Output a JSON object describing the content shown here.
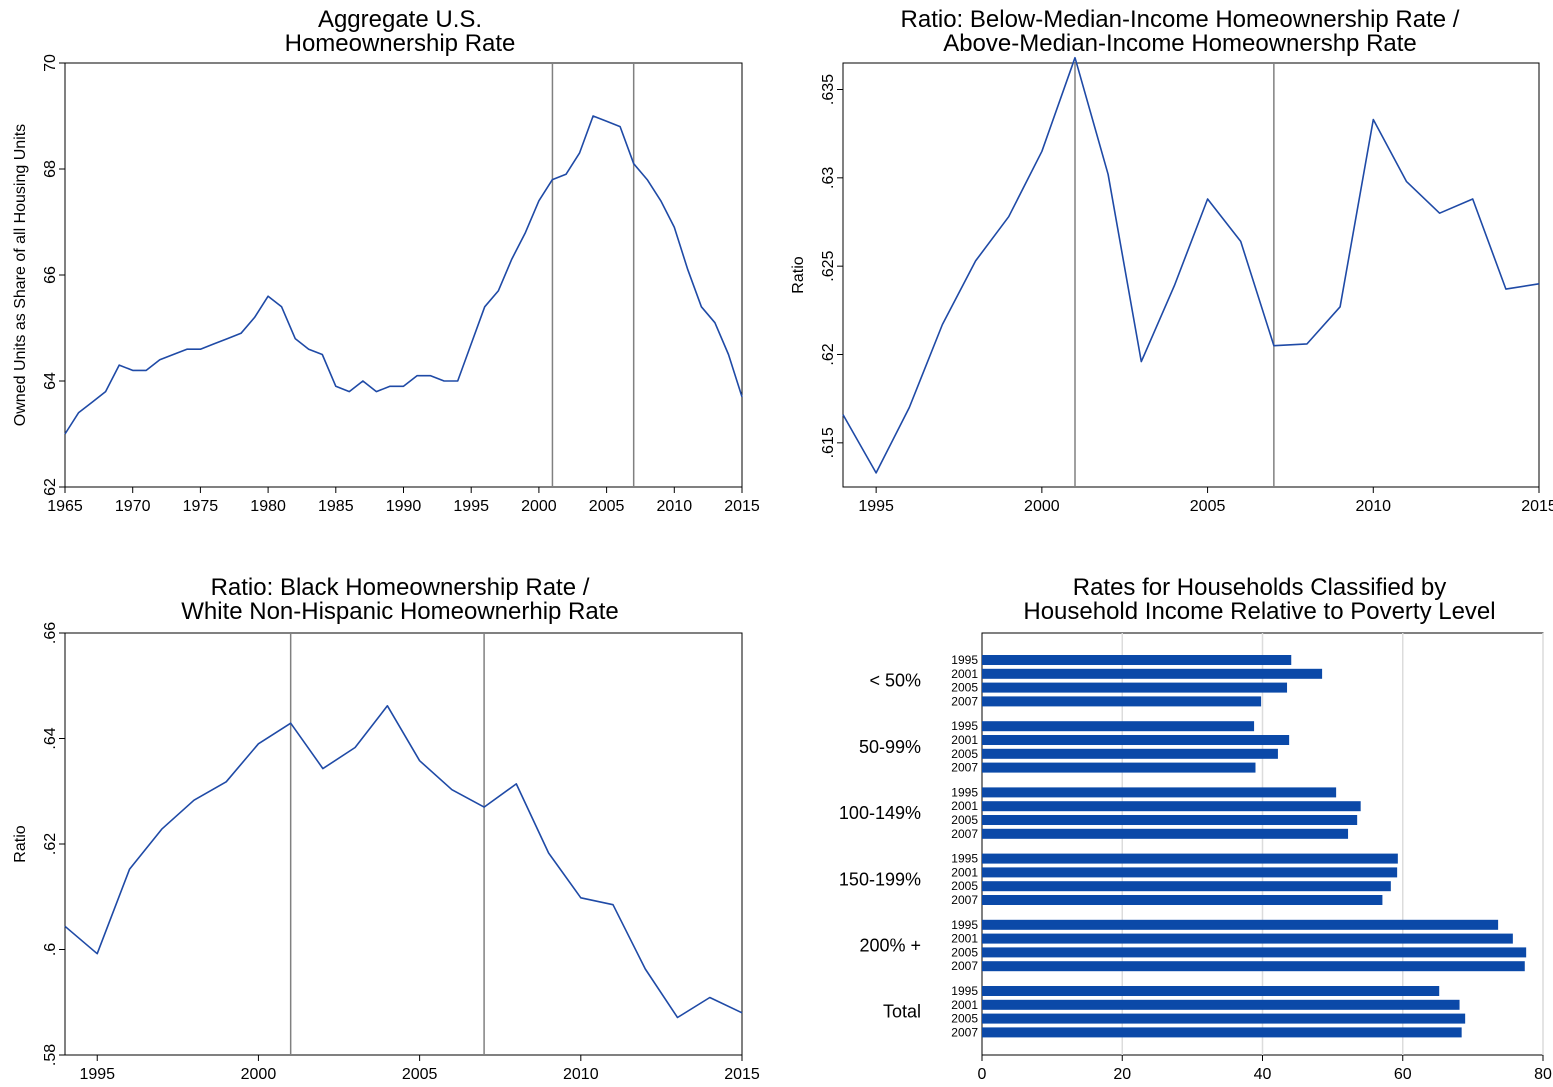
{
  "chart_data": [
    {
      "type": "line",
      "title": [
        "Aggregate U.S.",
        "Homeownership Rate"
      ],
      "xlabel": "",
      "ylabel": "Owned Units as Share of all Housing Units",
      "xlim": [
        1965,
        2015
      ],
      "ylim": [
        62,
        70
      ],
      "xticks": [
        "1965",
        "1970",
        "1975",
        "1980",
        "1985",
        "1990",
        "1995",
        "2000",
        "2005",
        "2010",
        "2015"
      ],
      "yticks": [
        "62",
        "64",
        "66",
        "68",
        "70"
      ],
      "vlines": [
        2001,
        2007
      ],
      "series": [
        {
          "x": [
            1965,
            1966,
            1967,
            1968,
            1969,
            1970,
            1971,
            1972,
            1973,
            1974,
            1975,
            1976,
            1977,
            1978,
            1979,
            1980,
            1981,
            1982,
            1983,
            1984,
            1985,
            1986,
            1987,
            1988,
            1989,
            1990,
            1991,
            1992,
            1993,
            1994,
            1995,
            1996,
            1997,
            1998,
            1999,
            2000,
            2001,
            2002,
            2003,
            2004,
            2005,
            2006,
            2007,
            2008,
            2009,
            2010,
            2011,
            2012,
            2013,
            2014,
            2015
          ],
          "values": [
            63.0,
            63.4,
            63.6,
            63.8,
            64.3,
            64.2,
            64.2,
            64.4,
            64.5,
            64.6,
            64.6,
            64.7,
            64.8,
            64.9,
            65.2,
            65.6,
            65.4,
            64.8,
            64.6,
            64.5,
            63.9,
            63.8,
            64.0,
            63.8,
            63.9,
            63.9,
            64.1,
            64.1,
            64.0,
            64.0,
            64.7,
            65.4,
            65.7,
            66.3,
            66.8,
            67.4,
            67.8,
            67.9,
            68.3,
            69.0,
            68.9,
            68.8,
            68.1,
            67.8,
            67.4,
            66.9,
            66.1,
            65.4,
            65.1,
            64.5,
            63.7
          ]
        }
      ]
    },
    {
      "type": "line",
      "title": [
        "Ratio: Below-Median-Income Homeownership Rate /",
        "Above-Median-Income Homeownershp Rate"
      ],
      "xlabel": "",
      "ylabel": "Ratio",
      "xlim": [
        1994,
        2015
      ],
      "ylim": [
        0.6125,
        0.6365
      ],
      "xticks": [
        "1995",
        "2000",
        "2005",
        "2010",
        "2015"
      ],
      "yticks": [
        ".615",
        ".62",
        ".625",
        ".63",
        ".635"
      ],
      "vlines": [
        2001,
        2007
      ],
      "series": [
        {
          "x": [
            1994,
            1995,
            1996,
            1997,
            1998,
            1999,
            2000,
            2001,
            2002,
            2003,
            2004,
            2005,
            2006,
            2007,
            2008,
            2009,
            2010,
            2011,
            2012,
            2013,
            2014,
            2015
          ],
          "values": [
            0.6166,
            0.6133,
            0.617,
            0.6217,
            0.6253,
            0.6278,
            0.6315,
            0.6368,
            0.6302,
            0.6196,
            0.6239,
            0.6288,
            0.6264,
            0.6205,
            0.6206,
            0.6227,
            0.6333,
            0.6298,
            0.628,
            0.6288,
            0.6237,
            0.624
          ]
        }
      ]
    },
    {
      "type": "line",
      "title": [
        "Ratio: Black Homeownership Rate /",
        "White Non-Hispanic Homeownerhip Rate"
      ],
      "xlabel": "",
      "ylabel": "Ratio",
      "xlim": [
        1994,
        2015
      ],
      "ylim": [
        0.58,
        0.66
      ],
      "xticks": [
        "1995",
        "2000",
        "2005",
        "2010",
        "2015"
      ],
      "yticks": [
        ".58",
        ".6",
        ".62",
        ".64",
        ".66"
      ],
      "vlines": [
        2001,
        2007
      ],
      "series": [
        {
          "x": [
            1994,
            1995,
            1996,
            1997,
            1998,
            1999,
            2000,
            2001,
            2002,
            2003,
            2004,
            2005,
            2006,
            2007,
            2008,
            2009,
            2010,
            2011,
            2012,
            2013,
            2014,
            2015
          ],
          "values": [
            0.6044,
            0.5992,
            0.6152,
            0.6228,
            0.6283,
            0.6318,
            0.639,
            0.6429,
            0.6343,
            0.6383,
            0.6462,
            0.6358,
            0.6303,
            0.627,
            0.6314,
            0.6183,
            0.6098,
            0.6085,
            0.5963,
            0.5871,
            0.5909,
            0.588
          ]
        }
      ]
    },
    {
      "type": "bar",
      "orientation": "horizontal",
      "title": [
        "Rates for Households Classified by",
        "Household Income Relative to Poverty Level"
      ],
      "xlabel": "",
      "ylabel": "",
      "xlim": [
        0,
        80
      ],
      "xticks": [
        "0",
        "20",
        "40",
        "60",
        "80"
      ],
      "color": "#0b49a8",
      "groups": [
        {
          "label": "< 50%",
          "bars": [
            {
              "year": "1995",
              "value": 44.1
            },
            {
              "year": "2001",
              "value": 48.5
            },
            {
              "year": "2005",
              "value": 43.5
            },
            {
              "year": "2007",
              "value": 39.8
            }
          ]
        },
        {
          "label": "50-99%",
          "bars": [
            {
              "year": "1995",
              "value": 38.8
            },
            {
              "year": "2001",
              "value": 43.8
            },
            {
              "year": "2005",
              "value": 42.2
            },
            {
              "year": "2007",
              "value": 39.0
            }
          ]
        },
        {
          "label": "100-149%",
          "bars": [
            {
              "year": "1995",
              "value": 50.5
            },
            {
              "year": "2001",
              "value": 54.0
            },
            {
              "year": "2005",
              "value": 53.5
            },
            {
              "year": "2007",
              "value": 52.2
            }
          ]
        },
        {
          "label": "150-199%",
          "bars": [
            {
              "year": "1995",
              "value": 59.3
            },
            {
              "year": "2001",
              "value": 59.2
            },
            {
              "year": "2005",
              "value": 58.3
            },
            {
              "year": "2007",
              "value": 57.1
            }
          ]
        },
        {
          "label": "200% +",
          "bars": [
            {
              "year": "1995",
              "value": 73.6
            },
            {
              "year": "2001",
              "value": 75.7
            },
            {
              "year": "2005",
              "value": 77.6
            },
            {
              "year": "2007",
              "value": 77.4
            }
          ]
        },
        {
          "label": "Total",
          "bars": [
            {
              "year": "1995",
              "value": 65.2
            },
            {
              "year": "2001",
              "value": 68.1
            },
            {
              "year": "2005",
              "value": 68.9
            },
            {
              "year": "2007",
              "value": 68.4
            }
          ]
        }
      ]
    }
  ],
  "style": {
    "line_color": "#1f4aa6",
    "bar_color": "#0b49a8",
    "vline_color": "#808080",
    "grid_color": "#dcdcdc"
  }
}
